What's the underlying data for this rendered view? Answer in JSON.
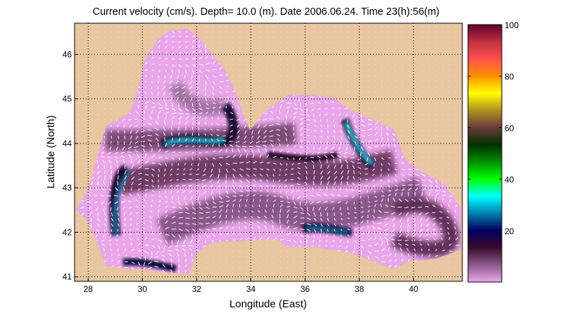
{
  "chart_data": {
    "type": "heatmap",
    "title": "Current velocity (cm/s). Depth= 10.0 (m). Date 2006.06.24. Time 23(h):56(m)",
    "xlabel": "Longitude (East)",
    "ylabel": "Latitude (North)",
    "xlim": [
      27.5,
      41.8
    ],
    "ylim": [
      40.9,
      46.7
    ],
    "xticks": [
      "28",
      "30",
      "32",
      "34",
      "36",
      "38",
      "40"
    ],
    "xtick_values": [
      28,
      30,
      32,
      34,
      36,
      38,
      40
    ],
    "yticks": [
      "41",
      "42",
      "43",
      "44",
      "45",
      "46"
    ],
    "ytick_values": [
      41,
      42,
      43,
      44,
      45,
      46
    ],
    "grid": true,
    "colorbar": {
      "ticks": [
        "20",
        "40",
        "60",
        "80",
        "100"
      ],
      "tick_values": [
        20,
        40,
        60,
        80,
        100
      ],
      "range": [
        0,
        100
      ],
      "colors": [
        "#eaa6ea",
        "#8a5a8a",
        "#3a0a2e",
        "#000060",
        "#0080b0",
        "#00ffff",
        "#00ff00",
        "#009000",
        "#003000",
        "#6a3a3a",
        "#b09020",
        "#ffff00",
        "#ff9000",
        "#ff5050",
        "#c03040",
        "#600030"
      ]
    },
    "land_color": "#e7c6a0",
    "sea_low_color": "#eaa6ea"
  }
}
